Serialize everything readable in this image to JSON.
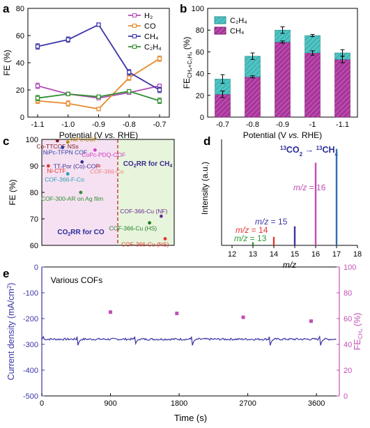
{
  "panel_labels": {
    "a": "a",
    "b": "b",
    "c": "c",
    "d": "d",
    "e": "e"
  },
  "colors": {
    "h2": "#b04db5",
    "co": "#e8892b",
    "ch4": "#3a34a6",
    "c2h4": "#2f8f2f",
    "bar_ch4": "#a9359b",
    "bar_c2h4": "#4fc4c4",
    "pink_bg": "#f5e1f2",
    "green_bg": "#e7f5dc",
    "divider": "#c0392b",
    "ms_13": "#2f9a2f",
    "ms_14": "#e3362f",
    "ms_15": "#3a34a6",
    "ms_16": "#c04fb4",
    "ms_17": "#2a6fb5",
    "current": "#3a34a6",
    "fe_e": "#c04fb4"
  },
  "chart_data": [
    {
      "id": "a",
      "type": "line",
      "xlabel": "Potential (V vs. RHE)",
      "ylabel": "FE (%)",
      "categories": [
        "-1.1",
        "-1.0",
        "-0.9",
        "-0.8",
        "-0.7"
      ],
      "ylim": [
        0,
        80
      ],
      "yticks": [
        "0",
        "20",
        "40",
        "60",
        "80"
      ],
      "series": [
        {
          "name": "H₂",
          "key": "h2",
          "values": [
            23,
            17,
            14,
            18,
            23
          ],
          "err": [
            2,
            1,
            1,
            1,
            1
          ]
        },
        {
          "name": "CO",
          "key": "co",
          "values": [
            12,
            10,
            6,
            29,
            43
          ],
          "err": [
            2,
            2,
            1,
            2,
            2
          ]
        },
        {
          "name": "CH₄",
          "key": "ch4",
          "values": [
            52,
            57,
            68,
            33,
            20
          ],
          "err": [
            2,
            2,
            1,
            2,
            2
          ]
        },
        {
          "name": "C₂H₄",
          "key": "c2h4",
          "values": [
            14,
            17,
            15,
            19,
            12
          ],
          "err": [
            2,
            1,
            1,
            1,
            2
          ]
        }
      ],
      "legend_position": "top-right"
    },
    {
      "id": "b",
      "type": "bar",
      "stacked": true,
      "xlabel": "Potential (V vs. RHE)",
      "ylabel_main": "FE",
      "ylabel_sub": "CH₄+C₂H₄",
      "ylabel_unit": "(%)",
      "categories": [
        "-0.7",
        "-0.8",
        "-0.9",
        "-1",
        "-1.1"
      ],
      "ylim": [
        0,
        100
      ],
      "yticks": [
        "0",
        "20",
        "40",
        "60",
        "80",
        "100"
      ],
      "series": [
        {
          "name": "CH₄",
          "key": "bar_ch4",
          "values": [
            21,
            37,
            69,
            59,
            53
          ],
          "err": [
            3,
            1,
            1,
            2,
            3
          ]
        },
        {
          "name": "C₂H₄",
          "key": "bar_c2h4",
          "values": [
            14,
            19,
            11,
            16,
            6
          ],
          "total_err": [
            4,
            3,
            3,
            1,
            3
          ]
        }
      ],
      "legend_position": "top-left"
    },
    {
      "id": "c",
      "type": "scatter",
      "xlabel": "Various COFs",
      "ylabel": "FE (%)",
      "ylim": [
        60,
        100
      ],
      "yticks": [
        "60",
        "70",
        "80",
        "90",
        "100"
      ],
      "region_left": "CO₂RR for CO",
      "region_right": "CO₂RR for CH₄",
      "points": [
        {
          "label": "Co-TTCOF NSs",
          "x": 0.6,
          "y": 99.5,
          "color": "#7a1d1d"
        },
        {
          "label": "NiPc-COF",
          "x": 1.0,
          "y": 99.0,
          "color": "#b8860b"
        },
        {
          "label": "NiPc-TFPN COF",
          "x": 0.8,
          "y": 97.0,
          "color": "#2a3f9f"
        },
        {
          "label": "CoPc-PDQ-COF",
          "x": 2.05,
          "y": 96.0,
          "color": "#d040c0"
        },
        {
          "label": "TT-Por (Co)-COF",
          "x": 1.55,
          "y": 91.5,
          "color": "#3a2a90"
        },
        {
          "label": "Ni-CTF",
          "x": 0.25,
          "y": 90.0,
          "color": "#e3362f"
        },
        {
          "label": "COF-366-Co",
          "x": 2.2,
          "y": 90.0,
          "color": "#f08080"
        },
        {
          "label": "COF-366-F-Co",
          "x": 1.0,
          "y": 87.0,
          "color": "#2aa0b0"
        },
        {
          "label": "COF-300-AR on Ag film",
          "x": 1.5,
          "y": 80.0,
          "color": "#2f8f2f"
        },
        {
          "label": "COF-366-Cu (NF)",
          "x": 4.6,
          "y": 71.0,
          "color": "#6a2a90"
        },
        {
          "label": "COF-366-Cu (HS)",
          "x": 4.15,
          "y": 68.5,
          "color": "#1f7a1f"
        },
        {
          "label": "COF-366-Cu (NS)",
          "x": 4.75,
          "y": 62.5,
          "color": "#e3362f"
        }
      ]
    },
    {
      "id": "d",
      "type": "bar",
      "xlabel": "m/z",
      "ylabel": "Intensity (a.u.)",
      "xlim": [
        11.5,
        18
      ],
      "xticks": [
        "12",
        "13",
        "14",
        "15",
        "16",
        "17",
        "18"
      ],
      "title_from": "¹³CO₂",
      "title_to": "¹³CH₄",
      "peaks": [
        {
          "mz": 13,
          "intensity": 0.03,
          "label": "m/z = 13",
          "key": "ms_13"
        },
        {
          "mz": 14,
          "intensity": 0.08,
          "label": "m/z = 14",
          "key": "ms_14"
        },
        {
          "mz": 15,
          "intensity": 0.18,
          "label": "m/z = 15",
          "key": "ms_15"
        },
        {
          "mz": 16,
          "intensity": 0.78,
          "label": "m/z = 16",
          "key": "ms_16"
        },
        {
          "mz": 17,
          "intensity": 0.91,
          "label": "",
          "key": "ms_17"
        }
      ]
    },
    {
      "id": "e",
      "type": "line",
      "xlabel": "Time (s)",
      "ylabel_left": "Current density (mA/cm²)",
      "ylabel_right_main": "FE",
      "ylabel_right_sub": "CH₄",
      "ylabel_right_unit": "(%)",
      "xlim": [
        0,
        3900
      ],
      "xticks": [
        "0",
        "900",
        "1800",
        "2700",
        "3600"
      ],
      "ylim_left": [
        -500,
        0
      ],
      "yticks_left": [
        "0",
        "-100",
        "-200",
        "-300",
        "-400",
        "-500"
      ],
      "ylim_right": [
        0,
        100
      ],
      "yticks_right": [
        "0",
        "20",
        "40",
        "60",
        "80",
        "100"
      ],
      "baseline": -280,
      "spikes": [
        470,
        1220,
        1970,
        2990,
        3650
      ],
      "fe_points": [
        {
          "t": 900,
          "fe": 65
        },
        {
          "t": 1770,
          "fe": 64
        },
        {
          "t": 2640,
          "fe": 61
        },
        {
          "t": 3530,
          "fe": 58
        }
      ]
    }
  ]
}
